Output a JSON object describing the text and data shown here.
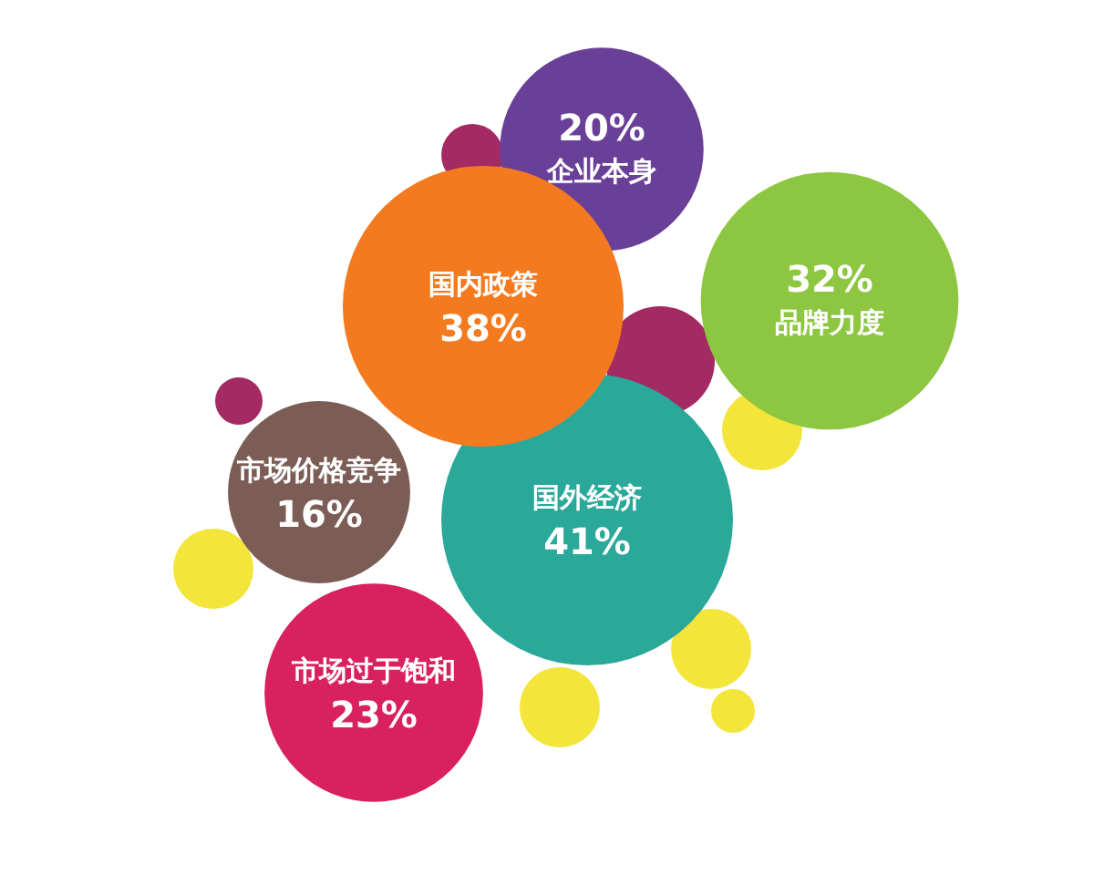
{
  "chart_data": {
    "type": "other",
    "categories": [
      "企业本身",
      "品牌力度",
      "国内政策",
      "市场价格竞争",
      "国外经济",
      "市场过于饱和"
    ],
    "values": [
      20,
      32,
      38,
      16,
      41,
      23
    ],
    "value_labels": [
      "20%",
      "32%",
      "38%",
      "16%",
      "41%",
      "23%"
    ],
    "colors": [
      "#6a3f98",
      "#8dc640",
      "#f47a20",
      "#7b5d56",
      "#2aa99b",
      "#d8215e"
    ]
  }
}
